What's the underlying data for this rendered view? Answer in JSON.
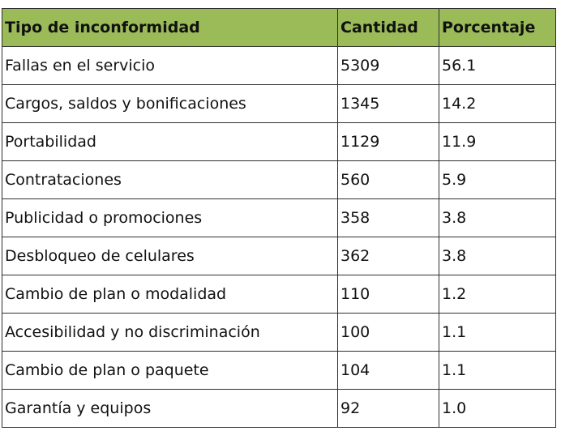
{
  "table": {
    "columns": [
      "Tipo de inconformidad",
      "Cantidad",
      "Porcentaje"
    ],
    "header_color": "#9bbb59",
    "rows": [
      [
        "Fallas en el servicio",
        "5309",
        "56.1"
      ],
      [
        "Cargos, saldos y bonificaciones",
        "1345",
        "14.2"
      ],
      [
        "Portabilidad",
        "1129",
        "11.9"
      ],
      [
        "Contrataciones",
        "560",
        "5.9"
      ],
      [
        "Publicidad o promociones",
        "358",
        "3.8"
      ],
      [
        "Desbloqueo de celulares",
        "362",
        "3.8"
      ],
      [
        "Cambio de plan o modalidad",
        "110",
        "1.2"
      ],
      [
        "Accesibilidad y no discriminación",
        "100",
        "1.1"
      ],
      [
        "Cambio de plan o paquete",
        "104",
        "1.1"
      ],
      [
        "Garantía  y equipos",
        "92",
        "1.0"
      ]
    ]
  }
}
